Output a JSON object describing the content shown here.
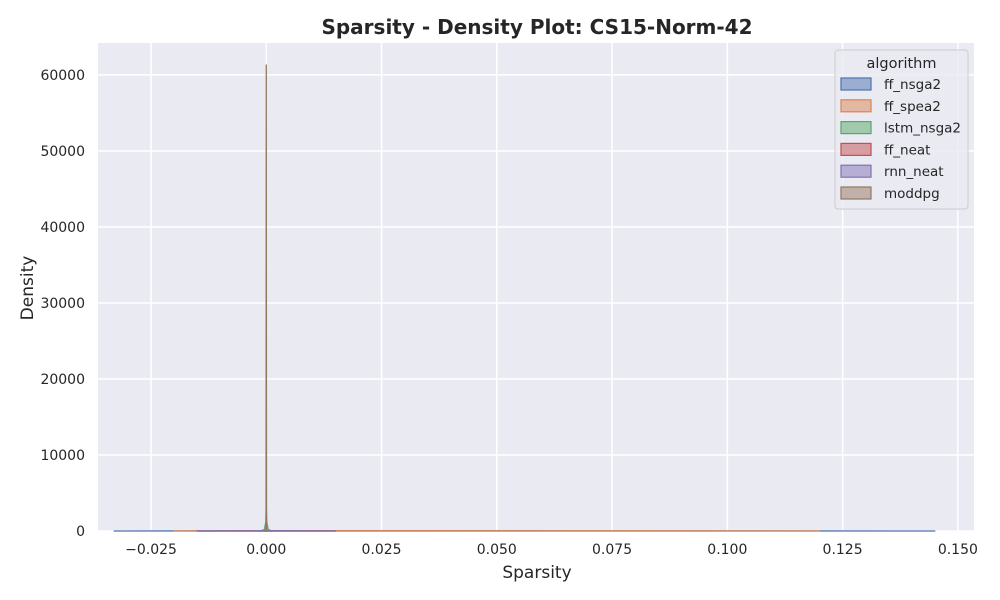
{
  "chart_data": {
    "type": "area",
    "title": "Sparsity - Density Plot: CS15-Norm-42",
    "xlabel": "Sparsity",
    "ylabel": "Density",
    "xlim": [
      -0.0365,
      0.1535
    ],
    "ylim": [
      0,
      64200
    ],
    "xticks": [
      -0.025,
      0.0,
      0.025,
      0.05,
      0.075,
      0.1,
      0.125,
      0.15
    ],
    "xtick_labels": [
      "−0.025",
      "0.000",
      "0.025",
      "0.050",
      "0.075",
      "0.100",
      "0.125",
      "0.150"
    ],
    "yticks": [
      0,
      10000,
      20000,
      30000,
      40000,
      50000,
      60000
    ],
    "ytick_labels": [
      "0",
      "10000",
      "20000",
      "30000",
      "40000",
      "50000",
      "60000"
    ],
    "grid": true,
    "background": "#eaeaf2",
    "legend": {
      "title": "algorithm",
      "position": "top-right"
    },
    "series": [
      {
        "name": "ff_nsga2",
        "color": "#4c72b0",
        "points": [
          [
            -0.033,
            0
          ],
          [
            0.0,
            40
          ],
          [
            0.145,
            0
          ]
        ]
      },
      {
        "name": "ff_spea2",
        "color": "#dd8452",
        "points": [
          [
            -0.02,
            0
          ],
          [
            0.0,
            30
          ],
          [
            0.12,
            0
          ]
        ]
      },
      {
        "name": "lstm_nsga2",
        "color": "#55a868",
        "points": [
          [
            -0.0012,
            0
          ],
          [
            -0.0004,
            200
          ],
          [
            -0.0001,
            1200
          ],
          [
            0.0,
            3500
          ],
          [
            0.0001,
            1200
          ],
          [
            0.0004,
            200
          ],
          [
            0.0012,
            0
          ]
        ]
      },
      {
        "name": "ff_neat",
        "color": "#c44e52",
        "points": [
          [
            -0.015,
            0
          ],
          [
            0.0,
            25
          ],
          [
            0.015,
            0
          ]
        ]
      },
      {
        "name": "rnn_neat",
        "color": "#8172b3",
        "points": [
          [
            -0.015,
            0
          ],
          [
            0.0,
            25
          ],
          [
            0.015,
            0
          ]
        ]
      },
      {
        "name": "moddpg",
        "color": "#937860",
        "points": [
          [
            -5e-05,
            0
          ],
          [
            0.0,
            61300
          ],
          [
            5e-05,
            0
          ]
        ]
      }
    ]
  }
}
